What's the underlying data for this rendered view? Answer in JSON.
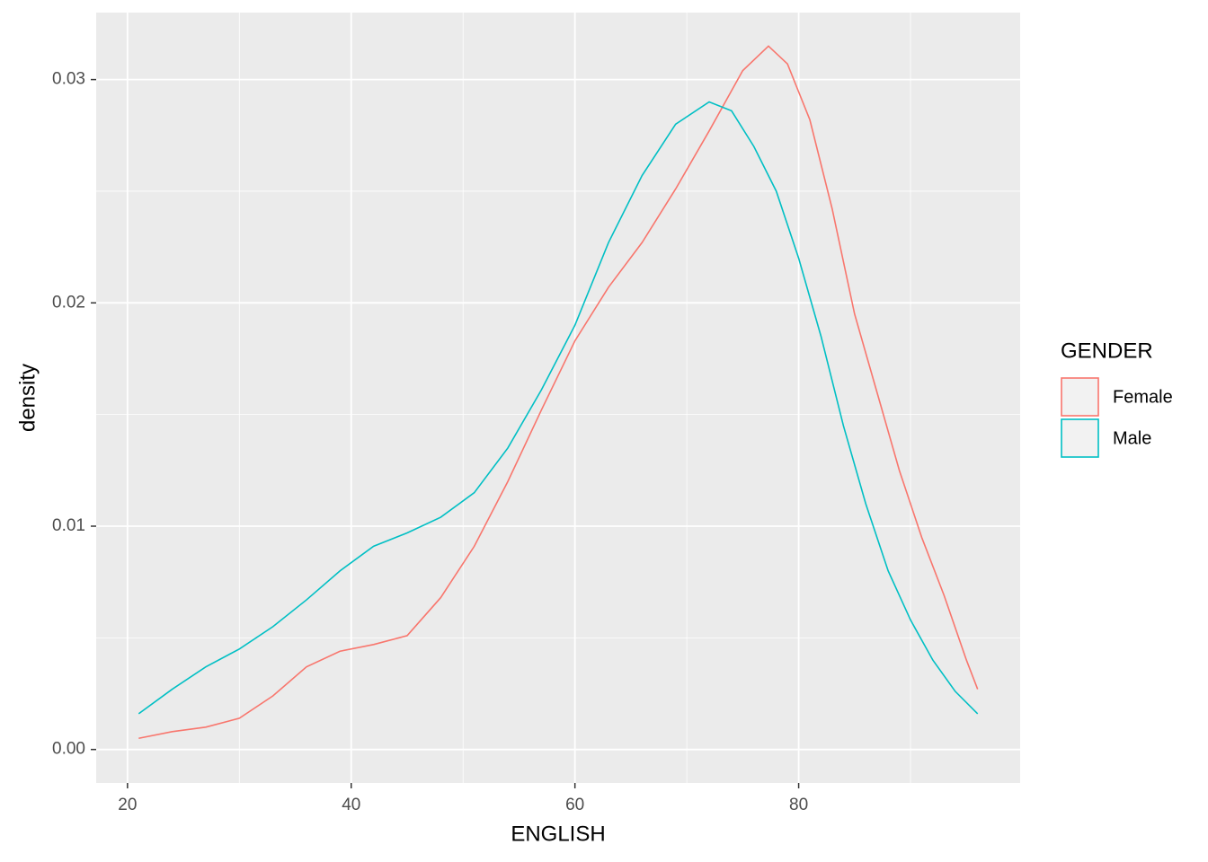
{
  "chart_data": {
    "type": "line",
    "x_label": "ENGLISH",
    "y_label": "density",
    "legend_title": "GENDER",
    "legend_position": "right",
    "xlim": [
      17.2,
      99.8
    ],
    "ylim": [
      -0.0015,
      0.033
    ],
    "xticks": [
      20,
      40,
      60,
      80
    ],
    "xminor": [
      30,
      50,
      70,
      90
    ],
    "yticks": [
      {
        "value": 0,
        "label": "0.00"
      },
      0.01,
      0.02,
      0.03
    ],
    "yminor": [
      0.005,
      0.015,
      0.025
    ],
    "grid": true,
    "series": [
      {
        "name": "Female",
        "color": "#F8766D",
        "x": [
          21,
          24,
          27,
          30,
          33,
          36,
          39,
          42,
          45,
          48,
          51,
          54,
          57,
          60,
          63,
          66,
          69,
          72,
          75,
          77.3,
          79,
          81,
          83,
          85,
          87,
          89,
          91,
          93,
          95,
          96
        ],
        "values": [
          0.0005,
          0.0008,
          0.001,
          0.0014,
          0.0024,
          0.0037,
          0.0044,
          0.0047,
          0.0051,
          0.0068,
          0.0091,
          0.012,
          0.0152,
          0.0183,
          0.0207,
          0.0227,
          0.0251,
          0.0277,
          0.0304,
          0.0315,
          0.0307,
          0.0282,
          0.0242,
          0.0195,
          0.016,
          0.0125,
          0.0095,
          0.0069,
          0.004,
          0.0027
        ]
      },
      {
        "name": "Male",
        "color": "#00BFC4",
        "x": [
          21,
          24,
          27,
          30,
          33,
          36,
          39,
          42,
          45,
          48,
          51,
          54,
          57,
          60,
          63,
          66,
          69,
          72,
          74,
          76,
          78,
          80,
          82,
          84,
          86,
          88,
          90,
          92,
          94,
          96
        ],
        "values": [
          0.0016,
          0.0027,
          0.0037,
          0.0045,
          0.0055,
          0.0067,
          0.008,
          0.0091,
          0.0097,
          0.0104,
          0.0115,
          0.0135,
          0.0161,
          0.019,
          0.0227,
          0.0257,
          0.028,
          0.029,
          0.0286,
          0.027,
          0.025,
          0.022,
          0.0185,
          0.0145,
          0.011,
          0.008,
          0.0058,
          0.004,
          0.0026,
          0.0016
        ]
      }
    ]
  }
}
